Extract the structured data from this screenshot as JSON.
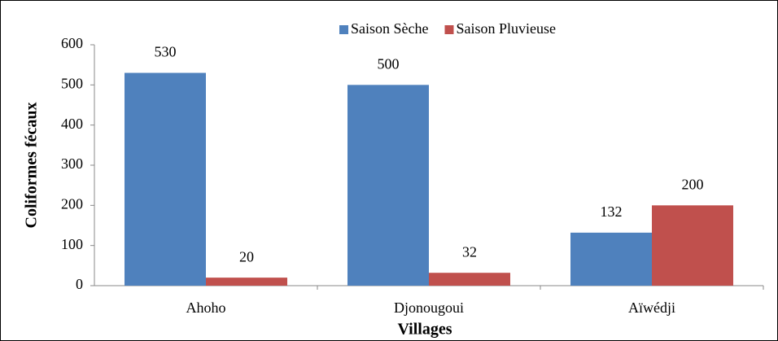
{
  "chart_data": {
    "type": "bar",
    "xlabel": "Villages",
    "ylabel": "Coliformes fécaux",
    "categories": [
      "Ahoho",
      "Djonougoui",
      "Aïwédji"
    ],
    "series": [
      {
        "name": "Saison Sèche",
        "color": "#4f81bd",
        "values": [
          530,
          500,
          132
        ]
      },
      {
        "name": "Saison Pluvieuse",
        "color": "#c0504d",
        "values": [
          20,
          32,
          200
        ]
      }
    ],
    "ylim": [
      0,
      600
    ],
    "yticks": [
      0,
      100,
      200,
      300,
      400,
      500,
      600
    ],
    "legend": "top"
  }
}
